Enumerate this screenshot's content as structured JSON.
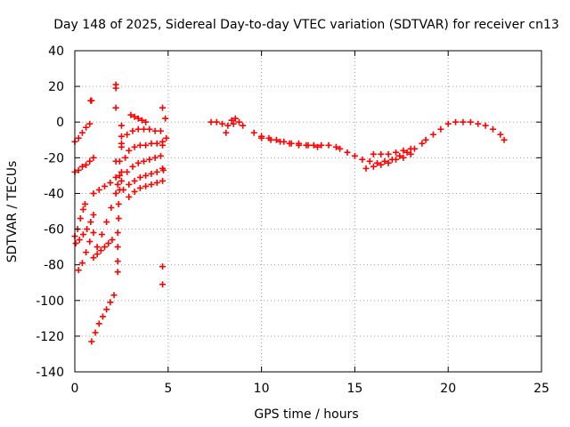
{
  "chart_data": {
    "type": "scatter",
    "title": "Day 148 of 2025, Sidereal Day-to-day VTEC variation (SDTVAR) for receiver cn13",
    "xlabel": "GPS time / hours",
    "ylabel": "SDTVAR / TECUs",
    "xlim": [
      0,
      25
    ],
    "ylim": [
      -140,
      40
    ],
    "xticks": [
      0,
      5,
      10,
      15,
      20,
      25
    ],
    "yticks": [
      -140,
      -120,
      -100,
      -80,
      -60,
      -40,
      -20,
      0,
      20,
      40
    ],
    "grid": true,
    "marker": "+",
    "color": "#ff0000",
    "series": [
      {
        "name": "arc01",
        "x": [
          0.0,
          0.2,
          0.4,
          0.6,
          0.8
        ],
        "y": [
          -11,
          -9,
          -6,
          -3,
          -1
        ]
      },
      {
        "name": "arc02",
        "x": [
          0.0,
          0.2,
          0.4,
          0.6,
          0.8,
          1.0
        ],
        "y": [
          -28,
          -27,
          -25,
          -24,
          -22,
          -20
        ]
      },
      {
        "name": "arc03",
        "x": [
          0.0,
          0.15,
          0.3,
          0.45,
          0.55
        ],
        "y": [
          -64,
          -60,
          -54,
          -49,
          -46
        ]
      },
      {
        "name": "arc04",
        "x": [
          0.05,
          0.25,
          0.45,
          0.65,
          0.85,
          1.0
        ],
        "y": [
          -68,
          -66,
          -63,
          -60,
          -56,
          -52
        ]
      },
      {
        "name": "arc05",
        "x": [
          0.2,
          0.4,
          0.6,
          0.8,
          1.0
        ],
        "y": [
          -83,
          -79,
          -73,
          -67,
          -62
        ]
      },
      {
        "name": "arc06",
        "x": [
          0.9,
          1.1,
          1.3,
          1.5,
          1.7,
          1.9,
          2.1
        ],
        "y": [
          -123,
          -118,
          -113,
          -109,
          -105,
          -101,
          -97
        ]
      },
      {
        "name": "arc07",
        "x": [
          1.0,
          1.2,
          1.4,
          1.6,
          1.8,
          2.0
        ],
        "y": [
          -76,
          -74,
          -72,
          -70,
          -68,
          -66
        ]
      },
      {
        "name": "arc08",
        "x": [
          1.0,
          1.3,
          1.6,
          1.9,
          2.2
        ],
        "y": [
          -40,
          -38,
          -36,
          -34,
          -31
        ]
      },
      {
        "name": "arc09",
        "x": [
          1.2,
          1.45,
          1.7,
          1.95,
          2.2
        ],
        "y": [
          -70,
          -63,
          -56,
          -48,
          -40
        ]
      },
      {
        "name": "arc10",
        "x": [
          2.2,
          2.5,
          2.8,
          3.1,
          3.4,
          3.7,
          4.0,
          4.3,
          4.6
        ],
        "y": [
          -22,
          -12,
          -7,
          -5,
          -4,
          -4,
          -4,
          -5,
          -5
        ]
      },
      {
        "name": "arc11",
        "x": [
          2.3,
          2.5,
          2.7,
          2.9,
          3.2,
          3.5,
          3.8,
          4.1,
          4.4,
          4.7
        ],
        "y": [
          -35,
          -28,
          -20,
          -16,
          -14,
          -13,
          -13,
          -12,
          -12,
          -11
        ]
      },
      {
        "name": "arc12",
        "x": [
          2.5,
          2.8,
          3.1,
          3.4,
          3.7,
          4.0,
          4.3,
          4.6
        ],
        "y": [
          -33,
          -28,
          -25,
          -23,
          -22,
          -21,
          -20,
          -19
        ]
      },
      {
        "name": "arc13",
        "x": [
          2.6,
          2.9,
          3.2,
          3.5,
          3.8,
          4.1,
          4.4,
          4.7
        ],
        "y": [
          -38,
          -35,
          -33,
          -31,
          -30,
          -29,
          -28,
          -26
        ]
      },
      {
        "name": "arc14",
        "x": [
          2.9,
          3.2,
          3.5,
          3.8,
          4.1,
          4.4,
          4.7
        ],
        "y": [
          -42,
          -39,
          -37,
          -36,
          -35,
          -34,
          -33
        ]
      },
      {
        "name": "arc15",
        "x": [
          2.3,
          2.3,
          2.3,
          2.3,
          2.35,
          2.35,
          2.4,
          2.4,
          2.4,
          2.5,
          2.5,
          2.5
        ],
        "y": [
          -84,
          -78,
          -70,
          -62,
          -54,
          -46,
          -38,
          -30,
          -22,
          -14,
          -8,
          -2
        ]
      },
      {
        "name": "arc16",
        "x": [
          3.0,
          3.2,
          3.4,
          3.6,
          3.8
        ],
        "y": [
          4,
          3,
          2,
          1,
          0
        ]
      },
      {
        "name": "isolated",
        "x": [
          0.9,
          0.85,
          2.2,
          2.2,
          2.2,
          4.7,
          4.75,
          4.7,
          4.7,
          4.7,
          4.85,
          4.9
        ],
        "y": [
          12,
          12,
          21,
          19,
          8,
          8,
          -27,
          -81,
          -91,
          -13,
          2,
          -9
        ]
      },
      {
        "name": "arc17",
        "x": [
          7.3,
          7.6,
          7.9,
          8.2,
          8.5,
          8.8,
          9.0,
          8.4,
          8.6,
          8.1
        ],
        "y": [
          0,
          0,
          -1,
          -2,
          -1,
          0,
          -2,
          1,
          2,
          -6
        ]
      },
      {
        "name": "arc18",
        "x": [
          9.6,
          10.0,
          10.4,
          10.8,
          11.2,
          11.6,
          12.0,
          12.4,
          12.8,
          13.2,
          13.6,
          14.0
        ],
        "y": [
          -6,
          -8,
          -9,
          -10,
          -11,
          -12,
          -12,
          -13,
          -13,
          -13,
          -13,
          -14
        ]
      },
      {
        "name": "arc19",
        "x": [
          10.0,
          10.5,
          11.0,
          11.5,
          12.0,
          12.5,
          13.0
        ],
        "y": [
          -9,
          -10,
          -11,
          -12,
          -13,
          -13,
          -14
        ]
      },
      {
        "name": "arc20",
        "x": [
          14.2,
          14.6,
          15.0,
          15.4,
          15.8,
          16.2,
          16.6,
          17.0,
          17.4,
          17.8,
          18.2,
          18.6
        ],
        "y": [
          -15,
          -17,
          -19,
          -21,
          -22,
          -23,
          -22,
          -21,
          -19,
          -17,
          -15,
          -12
        ]
      },
      {
        "name": "arc21",
        "x": [
          15.6,
          16.0,
          16.4,
          16.8,
          17.2,
          17.6,
          18.0
        ],
        "y": [
          -26,
          -25,
          -24,
          -23,
          -21,
          -20,
          -18
        ]
      },
      {
        "name": "arc22",
        "x": [
          16.0,
          16.4,
          16.8,
          17.2,
          17.6,
          18.0
        ],
        "y": [
          -18,
          -18,
          -18,
          -17,
          -16,
          -15
        ]
      },
      {
        "name": "arc23",
        "x": [
          18.8,
          19.2,
          19.6,
          20.0,
          20.4,
          20.8,
          21.2,
          21.6,
          22.0,
          22.4,
          22.8,
          23.0
        ],
        "y": [
          -10,
          -7,
          -4,
          -1,
          0,
          0,
          0,
          -1,
          -2,
          -4,
          -7,
          -10
        ]
      }
    ]
  }
}
